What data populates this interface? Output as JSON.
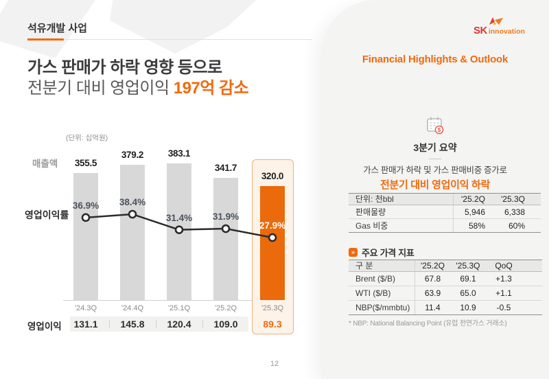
{
  "page": {
    "number": "12"
  },
  "header": {
    "section_label": "석유개발 사업"
  },
  "headline": {
    "line1": "가스 판매가 하락 영향 등으로",
    "line2_prefix": "전분기 대비 영업이익 ",
    "line2_highlight": "197억 감소"
  },
  "chart_data": {
    "type": "bar+line",
    "unit_note": "(단위: 십억원)",
    "categories": [
      "'24.3Q",
      "'24.4Q",
      "'25.1Q",
      "'25.2Q",
      "'25.3Q"
    ],
    "series": [
      {
        "name": "매출액",
        "type": "bar",
        "values": [
          355.5,
          379.2,
          383.1,
          341.7,
          320.0
        ]
      },
      {
        "name": "영업이익률",
        "type": "line",
        "unit": "%",
        "values": [
          36.9,
          38.4,
          31.4,
          31.9,
          27.9
        ]
      },
      {
        "name": "영업이익",
        "type": "value-row",
        "values": [
          131.1,
          145.8,
          120.4,
          109.0,
          89.3
        ]
      }
    ],
    "highlight_index": 4,
    "legend_position": "left",
    "grid": false,
    "colors": {
      "bar": "#d8d8d8",
      "highlight_bar": "#ea6a0c",
      "line": "#2b2b2b",
      "accent_text": "#f2690d"
    }
  },
  "right_panel": {
    "logo": {
      "sk": "SK",
      "innovation": "innovation"
    },
    "title": "Financial Highlights & Outlook",
    "summary": {
      "icon": "calendar-money-icon",
      "title": "3분기 요약",
      "line1": "가스 판매가 하락 및 가스 판매비중 증가로",
      "line2": "전분기 대비 영업이익 하락"
    },
    "table1": {
      "header": [
        "단위: 천bbl",
        "'25.2Q",
        "'25.3Q"
      ],
      "rows": [
        [
          "판매물량",
          "5,946",
          "6,338"
        ],
        [
          "Gas 비중",
          "58%",
          "60%"
        ]
      ]
    },
    "price_section": {
      "title": "주요 가격 지표"
    },
    "table2": {
      "header": [
        "구 분",
        "'25.2Q",
        "'25.3Q",
        "QoQ"
      ],
      "rows": [
        [
          "Brent ($/B)",
          "67.8",
          "69.1",
          "+1.3"
        ],
        [
          "WTI ($/B)",
          "63.9",
          "65.0",
          "+1.1"
        ],
        [
          "NBP($/mmbtu)",
          "11.4",
          "10.9",
          "-0.5"
        ]
      ]
    },
    "footnote": "* NBP: National Balancing Point (유럽 천연가스 거래소)"
  }
}
